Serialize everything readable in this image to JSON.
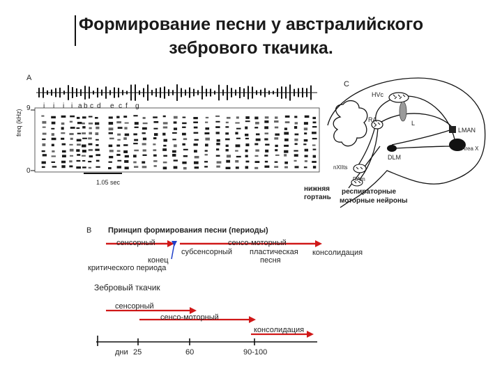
{
  "title": {
    "line1": "Формирование песни у австралийского",
    "line2": "зебрового ткачика."
  },
  "panel_a": {
    "letter": "A",
    "y_axis_label": "freq (kHz)",
    "y_top": "9",
    "y_bottom": "0",
    "syllables": [
      "i",
      "i",
      "i",
      "i",
      "a",
      "b",
      "c",
      "d",
      "e",
      "c",
      "f",
      "g"
    ],
    "scale_bar": "1.05 sec"
  },
  "panel_c": {
    "letter": "C",
    "nuclei": {
      "hvc": "HVc",
      "ra": "RA",
      "l": "L",
      "lman": "LMAN",
      "area_x": "Area X",
      "dlm": "DLM",
      "nxiits": "nXIIts",
      "ram": "RAm"
    },
    "label_lower_larynx_1": "нижняя",
    "label_lower_larynx_2": "гортань",
    "label_resp_1": "респираторные",
    "label_resp_2": "моторные нейроны"
  },
  "panel_b": {
    "letter": "B",
    "heading": "Принцип формирования песни (периоды)",
    "sensory": "сенсорный",
    "sensorimotor": "сенсо-моторный",
    "subsensory": "субсенсорный",
    "plastic_1": "пластическая",
    "plastic_2": "песня",
    "consolidation": "консолидация",
    "end_1": "конец",
    "end_2": "критического периода",
    "zebra_heading": "Зебровый ткачик",
    "zf_sensory": "сенсорный",
    "zf_sensorimotor": "сенсо-моторный",
    "zf_consolidation": "консолидация",
    "axis_days": "дни",
    "ticks": [
      "25",
      "60",
      "90-100"
    ]
  },
  "colors": {
    "arrow_red": "#d01818",
    "arrow_blue": "#1f3fc8",
    "ink": "#111111"
  }
}
